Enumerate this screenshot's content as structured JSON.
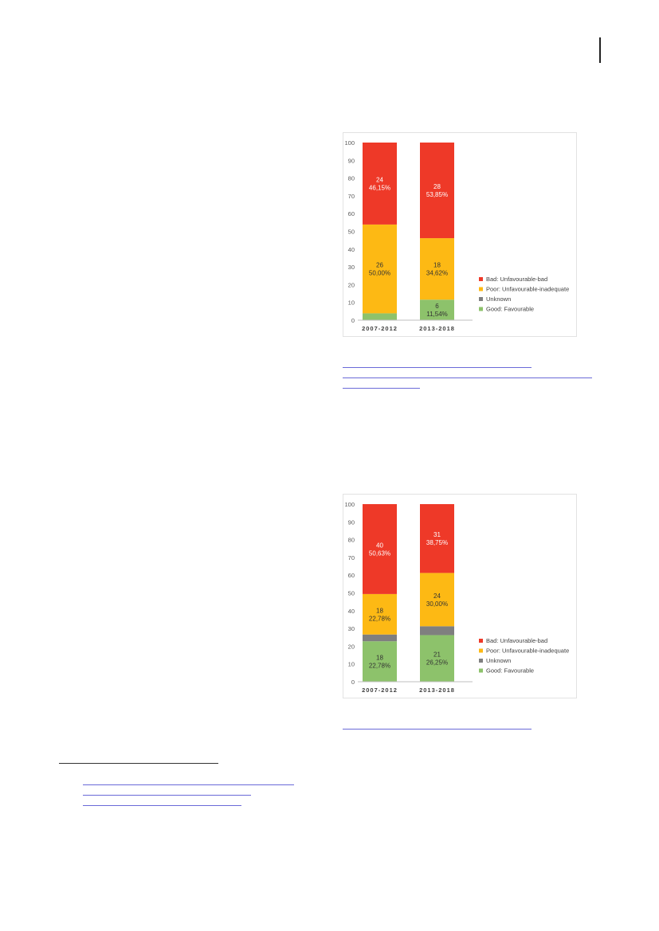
{
  "colors": {
    "bad": "#ee3928",
    "poor": "#fdb914",
    "unknown": "#7f7f7f",
    "good": "#8dc26b",
    "link": "#6a6ad8"
  },
  "chart_data": [
    {
      "type": "bar",
      "stacked": true,
      "categories": [
        "2007-2012",
        "2013-2018"
      ],
      "ylim": [
        0,
        100
      ],
      "yticks": [
        0,
        10,
        20,
        30,
        40,
        50,
        60,
        70,
        80,
        90,
        100
      ],
      "grid": false,
      "legend_position": "right",
      "series": [
        {
          "name": "Good: Favourable",
          "color_key": "good",
          "values": [
            3.85,
            11.54
          ],
          "labels": [
            [
              "",
              ""
            ],
            [
              "6",
              "11,54%"
            ]
          ]
        },
        {
          "name": "Unknown",
          "color_key": "unknown",
          "values": [
            0,
            0
          ],
          "labels": [
            [
              "",
              ""
            ],
            [
              "",
              ""
            ]
          ]
        },
        {
          "name": "Poor: Unfavourable-inadequate",
          "color_key": "poor",
          "values": [
            50.0,
            34.62
          ],
          "labels": [
            [
              "26",
              "50,00%"
            ],
            [
              "18",
              "34,62%"
            ]
          ]
        },
        {
          "name": "Bad: Unfavourable-bad",
          "color_key": "bad",
          "values": [
            46.15,
            53.85
          ],
          "labels": [
            [
              "24",
              "46,15%"
            ],
            [
              "28",
              "53,85%"
            ]
          ]
        }
      ],
      "legend": [
        "Bad: Unfavourable-bad",
        "Poor: Unfavourable-inadequate",
        "Unknown",
        "Good: Favourable"
      ]
    },
    {
      "type": "bar",
      "stacked": true,
      "categories": [
        "2007-2012",
        "2013-2018"
      ],
      "ylim": [
        0,
        100
      ],
      "yticks": [
        0,
        10,
        20,
        30,
        40,
        50,
        60,
        70,
        80,
        90,
        100
      ],
      "grid": false,
      "legend_position": "right",
      "series": [
        {
          "name": "Good: Favourable",
          "color_key": "good",
          "values": [
            22.78,
            26.25
          ],
          "labels": [
            [
              "18",
              "22,78%"
            ],
            [
              "21",
              "26,25%"
            ]
          ]
        },
        {
          "name": "Unknown",
          "color_key": "unknown",
          "values": [
            3.81,
            5.0
          ],
          "labels": [
            [
              "",
              ""
            ],
            [
              "",
              ""
            ]
          ]
        },
        {
          "name": "Poor: Unfavourable-inadequate",
          "color_key": "poor",
          "values": [
            22.78,
            30.0
          ],
          "labels": [
            [
              "18",
              "22,78%"
            ],
            [
              "24",
              "30,00%"
            ]
          ]
        },
        {
          "name": "Bad: Unfavourable-bad",
          "color_key": "bad",
          "values": [
            50.63,
            38.75
          ],
          "labels": [
            [
              "40",
              "50,63%"
            ],
            [
              "31",
              "38,75%"
            ]
          ]
        }
      ],
      "legend": [
        "Bad: Unfavourable-bad",
        "Poor: Unfavourable-inadequate",
        "Unknown",
        "Good: Favourable"
      ]
    }
  ]
}
